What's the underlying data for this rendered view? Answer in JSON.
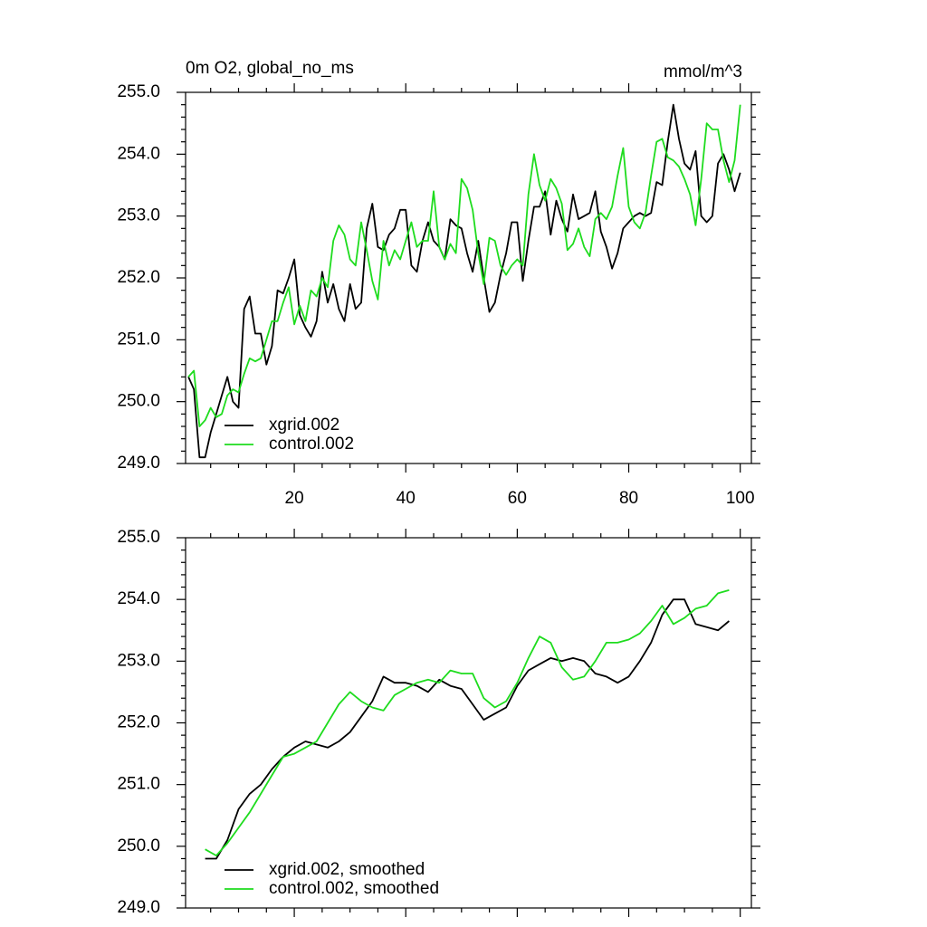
{
  "chart_data": [
    {
      "type": "line",
      "title": "0m O2, global_no_ms",
      "units": "mmol/m^3",
      "x": [
        1,
        2,
        3,
        4,
        5,
        6,
        7,
        8,
        9,
        10,
        11,
        12,
        13,
        14,
        15,
        16,
        17,
        18,
        19,
        20,
        21,
        22,
        23,
        24,
        25,
        26,
        27,
        28,
        29,
        30,
        31,
        32,
        33,
        34,
        35,
        36,
        37,
        38,
        39,
        40,
        41,
        42,
        43,
        44,
        45,
        46,
        47,
        48,
        49,
        50,
        51,
        52,
        53,
        54,
        55,
        56,
        57,
        58,
        59,
        60,
        61,
        62,
        63,
        64,
        65,
        66,
        67,
        68,
        69,
        70,
        71,
        72,
        73,
        74,
        75,
        76,
        77,
        78,
        79,
        80,
        81,
        82,
        83,
        84,
        85,
        86,
        87,
        88,
        89,
        90,
        91,
        92,
        93,
        94,
        95,
        96,
        97,
        98,
        99,
        100
      ],
      "xlim": [
        0.5,
        102
      ],
      "xticks": [
        20,
        40,
        60,
        80,
        100
      ],
      "ylim": [
        249,
        255
      ],
      "yticks": [
        {
          "value": 249,
          "label": "249.0"
        },
        {
          "value": 250,
          "label": "250.0"
        },
        {
          "value": 251,
          "label": "251.0"
        },
        {
          "value": 252,
          "label": "252.0"
        },
        {
          "value": 253,
          "label": "253.0"
        },
        {
          "value": 254,
          "label": "254.0"
        },
        {
          "value": 255,
          "label": "255.0"
        }
      ],
      "legend": "lower left",
      "series": [
        {
          "name": "xgrid.002",
          "color": "#000000",
          "values": [
            250.4,
            250.2,
            249.1,
            249.1,
            249.5,
            249.8,
            250.1,
            250.4,
            250.0,
            249.9,
            251.5,
            251.7,
            251.1,
            251.1,
            250.6,
            250.9,
            251.8,
            251.75,
            252.0,
            252.3,
            251.4,
            251.2,
            251.05,
            251.3,
            252.1,
            251.6,
            251.9,
            251.5,
            251.3,
            251.9,
            251.5,
            251.6,
            252.8,
            253.2,
            252.5,
            252.45,
            252.7,
            252.8,
            253.1,
            253.1,
            252.2,
            252.1,
            252.6,
            252.9,
            252.6,
            252.5,
            252.3,
            252.95,
            252.85,
            252.8,
            252.4,
            252.1,
            252.6,
            252.0,
            251.45,
            251.6,
            252.05,
            252.4,
            252.9,
            252.9,
            251.95,
            252.6,
            253.15,
            253.15,
            253.4,
            252.7,
            253.25,
            252.95,
            252.75,
            253.35,
            252.95,
            253.0,
            253.05,
            253.4,
            252.75,
            252.5,
            252.15,
            252.4,
            252.8,
            252.9,
            253.0,
            253.05,
            253.0,
            253.05,
            253.55,
            253.5,
            254.2,
            254.8,
            254.25,
            253.85,
            253.75,
            254.05,
            253.0,
            252.9,
            253.0,
            253.85,
            254.0,
            253.75,
            253.4,
            253.7
          ]
        },
        {
          "name": "control.002",
          "color": "#1edc1e",
          "values": [
            250.4,
            250.5,
            249.6,
            249.7,
            249.9,
            249.75,
            249.8,
            250.1,
            250.2,
            250.15,
            250.45,
            250.7,
            250.65,
            250.7,
            251.0,
            251.3,
            251.3,
            251.6,
            251.85,
            251.25,
            251.55,
            251.3,
            251.8,
            251.7,
            252.0,
            251.85,
            252.6,
            252.85,
            252.7,
            252.3,
            252.2,
            252.9,
            252.45,
            251.95,
            251.65,
            252.6,
            252.2,
            252.45,
            252.3,
            252.6,
            252.9,
            252.5,
            252.6,
            252.6,
            253.4,
            252.5,
            252.3,
            252.55,
            252.4,
            253.6,
            253.45,
            253.1,
            252.4,
            251.9,
            252.65,
            252.6,
            252.2,
            252.05,
            252.2,
            252.3,
            252.2,
            253.35,
            254.0,
            253.5,
            253.25,
            253.6,
            253.45,
            253.2,
            252.45,
            252.55,
            252.8,
            252.5,
            252.35,
            252.95,
            253.05,
            252.95,
            253.15,
            253.65,
            254.1,
            253.15,
            252.9,
            252.8,
            253.05,
            253.65,
            254.2,
            254.25,
            253.95,
            253.9,
            253.8,
            253.6,
            253.35,
            252.85,
            253.6,
            254.5,
            254.4,
            254.4,
            253.9,
            253.55,
            253.9,
            254.8
          ]
        }
      ]
    },
    {
      "type": "line",
      "x": [
        4,
        6,
        8,
        10,
        12,
        14,
        16,
        18,
        20,
        22,
        24,
        26,
        28,
        30,
        32,
        34,
        36,
        38,
        40,
        42,
        44,
        46,
        48,
        50,
        52,
        54,
        56,
        58,
        60,
        62,
        64,
        66,
        68,
        70,
        72,
        74,
        76,
        78,
        80,
        82,
        84,
        86,
        88,
        90,
        92,
        94,
        96,
        98
      ],
      "xlim": [
        0.5,
        102
      ],
      "xticks": [
        20,
        40,
        60,
        80,
        100
      ],
      "ylim": [
        249,
        255
      ],
      "yticks": [
        {
          "value": 249,
          "label": "249.0"
        },
        {
          "value": 250,
          "label": "250.0"
        },
        {
          "value": 251,
          "label": "251.0"
        },
        {
          "value": 252,
          "label": "252.0"
        },
        {
          "value": 253,
          "label": "253.0"
        },
        {
          "value": 254,
          "label": "254.0"
        },
        {
          "value": 255,
          "label": "255.0"
        }
      ],
      "legend": "lower left",
      "series": [
        {
          "name": "xgrid.002, smoothed",
          "color": "#000000",
          "values": [
            249.8,
            249.8,
            250.1,
            250.6,
            250.85,
            251.0,
            251.25,
            251.45,
            251.6,
            251.7,
            251.65,
            251.6,
            251.7,
            251.85,
            252.1,
            252.35,
            252.75,
            252.65,
            252.65,
            252.6,
            252.5,
            252.7,
            252.6,
            252.55,
            252.3,
            252.05,
            252.15,
            252.25,
            252.6,
            252.85,
            252.95,
            253.05,
            253.0,
            253.05,
            253.0,
            252.8,
            252.75,
            252.65,
            252.75,
            253.0,
            253.3,
            253.75,
            254.0,
            254.0,
            253.6,
            253.55,
            253.5,
            253.65
          ]
        },
        {
          "name": "control.002, smoothed",
          "color": "#1edc1e",
          "values": [
            249.95,
            249.85,
            250.05,
            250.3,
            250.55,
            250.85,
            251.15,
            251.45,
            251.5,
            251.6,
            251.7,
            252.0,
            252.3,
            252.5,
            252.35,
            252.25,
            252.2,
            252.45,
            252.55,
            252.65,
            252.7,
            252.65,
            252.85,
            252.8,
            252.8,
            252.4,
            252.25,
            252.35,
            252.65,
            253.05,
            253.4,
            253.3,
            252.9,
            252.7,
            252.75,
            253.0,
            253.3,
            253.3,
            253.35,
            253.45,
            253.65,
            253.9,
            253.6,
            253.7,
            253.85,
            253.9,
            254.1,
            254.15
          ]
        }
      ]
    }
  ]
}
